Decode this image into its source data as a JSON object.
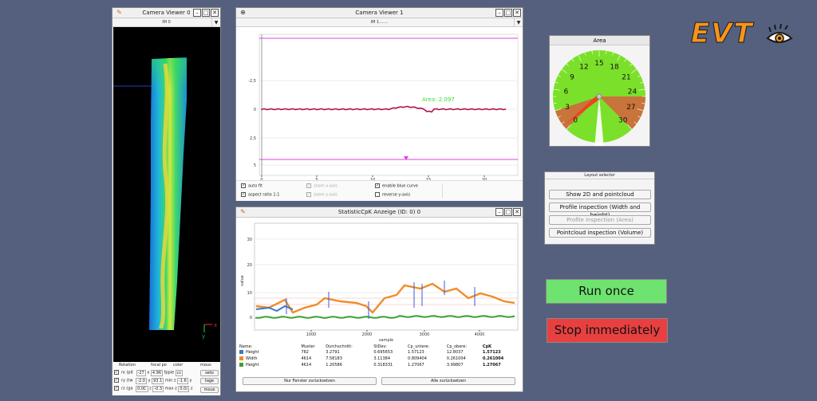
{
  "logo": {
    "text": "EVT"
  },
  "camera_viewer_0": {
    "title": "Camera Viewer 0",
    "sub": "IM 0",
    "axes": {
      "x": "x",
      "y": "y"
    },
    "controls": {
      "rotation_label": "Rotation",
      "focal_label": "focal po",
      "color_label": "color",
      "mouse_label": "mous",
      "rows": [
        {
          "label": "rx (pit",
          "val": "-27",
          "k": "x",
          "v2": "4.96",
          "c1": "fppie",
          "c2": "cc"
        },
        {
          "label": "ry (tw",
          "val": "-2.0",
          "k": "y",
          "v2": "93.1",
          "c1": "min z",
          "c2": "-1.6",
          "c3": "y"
        },
        {
          "label": "rz (ga",
          "val": "0.0C",
          "k": "z",
          "v2": "-0.3",
          "c1": "max z",
          "c2": "0.0(",
          "c3": "z"
        }
      ],
      "btn_reset": "seto",
      "btn_mag": "tage",
      "btn_mouse": "mous"
    }
  },
  "camera_viewer_1": {
    "title": "Camera Viewer 1",
    "sub": "IM 1.......",
    "area_label": "Area: 2.097",
    "y_ticks": [
      "-2,5",
      "0",
      "2,5",
      "5"
    ],
    "x_ticks": [
      "0",
      "5",
      "10",
      "15",
      "20"
    ],
    "options": {
      "auto_fit": "auto fit",
      "aspect_ratio": "aspect ratio 1:1",
      "zoom_x": "zoom x-axis",
      "zoom_y": "zoom y-axis",
      "blue_curve": "enable blue curve",
      "reverse_y": "reverse y-axis"
    }
  },
  "area_gauge": {
    "title": "Area",
    "value": 0.6,
    "labels": [
      "0",
      "3",
      "6",
      "9",
      "12",
      "15",
      "18",
      "21",
      "24",
      "27",
      "30"
    ]
  },
  "layout_selector": {
    "title": "Layout selector",
    "buttons": [
      "Show 2D and pointcloud",
      "Profile inspection (Width and height)",
      "Profile inspection (Area)",
      "Pointcloud inspection (Volume)"
    ]
  },
  "statistic_window": {
    "title": "StatisticCpK Anzeige  (ID: 0) 0",
    "ylabel": "value",
    "xlabel": "sample",
    "y_ticks": [
      "0",
      "10",
      "20",
      "30"
    ],
    "x_ticks": [
      "1000",
      "2000",
      "3000",
      "4000"
    ],
    "table": {
      "headers": [
        "Name:",
        "Muster",
        "Durchschnitt:",
        "StDev:",
        "Cp_untere:",
        "Cp_obere:",
        "CpK"
      ],
      "rows": [
        {
          "color": "#3c78c8",
          "cells": [
            "Height",
            "782",
            "3.2791",
            "0.695653",
            "1.57123",
            "12.8037",
            "1.57123"
          ]
        },
        {
          "color": "#f08c28",
          "cells": [
            "Width",
            "4614",
            "7.58183",
            "3.11384",
            "0.809404",
            "0.261004",
            "0.261004"
          ]
        },
        {
          "color": "#3ca032",
          "cells": [
            "Height",
            "4614",
            "1.20586",
            "0.318331",
            "1.27067",
            "3.99807",
            "1.27067"
          ]
        }
      ]
    },
    "btn_reset_window": "Nur Fenster zurücksetzen",
    "btn_reset_all": "Alle zurücksetzen"
  },
  "actions": {
    "run_once": "Run once",
    "stop": "Stop immediately"
  },
  "colors": {
    "run_once": "#6fe36f",
    "stop": "#e84040",
    "logo": "#f7941d",
    "profile_line": "#b0124a",
    "limit_line": "#e040e0"
  }
}
